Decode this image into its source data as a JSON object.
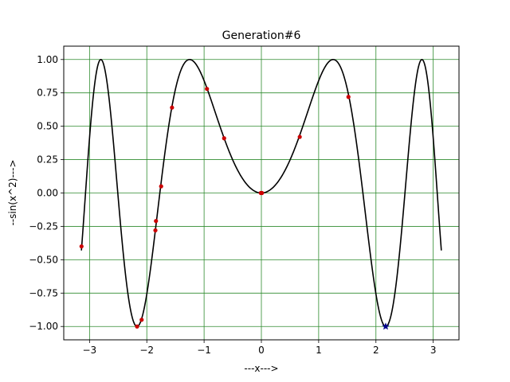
{
  "chart_data": {
    "type": "line",
    "title": "Generation#6",
    "xlabel": "---x--->",
    "ylabel": "--sin(x^2)--->",
    "xlim": [
      -3.45,
      3.45
    ],
    "ylim": [
      -1.1,
      1.1
    ],
    "x_ticks": [
      -3,
      -2,
      -1,
      0,
      1,
      2,
      3
    ],
    "x_tick_labels": [
      "−3",
      "−2",
      "−1",
      "0",
      "1",
      "2",
      "3"
    ],
    "y_ticks": [
      -1.0,
      -0.75,
      -0.5,
      -0.25,
      0.0,
      0.25,
      0.5,
      0.75,
      1.0
    ],
    "y_tick_labels": [
      "−1.00",
      "−0.75",
      "−0.50",
      "−0.25",
      "0.00",
      "0.25",
      "0.50",
      "0.75",
      "1.00"
    ],
    "grid": true,
    "grid_color": "#2e8b2e",
    "curve": {
      "function": "sin(x^2)",
      "x_range": [
        -3.14159,
        3.14159
      ],
      "color": "#000000"
    },
    "population_points": {
      "color": "#cc0000",
      "points": [
        {
          "x": -3.14,
          "y": -0.4
        },
        {
          "x": -2.17,
          "y": -1.0
        },
        {
          "x": -2.09,
          "y": -0.95
        },
        {
          "x": -1.84,
          "y": -0.21
        },
        {
          "x": -1.85,
          "y": -0.28
        },
        {
          "x": -1.75,
          "y": 0.05
        },
        {
          "x": -1.56,
          "y": 0.64
        },
        {
          "x": -0.95,
          "y": 0.78
        },
        {
          "x": -0.65,
          "y": 0.41
        },
        {
          "x": -0.01,
          "y": 0.0
        },
        {
          "x": 0.01,
          "y": 0.0
        },
        {
          "x": 0.67,
          "y": 0.42
        },
        {
          "x": 1.52,
          "y": 0.72
        }
      ]
    },
    "best_point": {
      "color": "#00008b",
      "marker": "star",
      "x": 2.17,
      "y": -1.0
    }
  }
}
